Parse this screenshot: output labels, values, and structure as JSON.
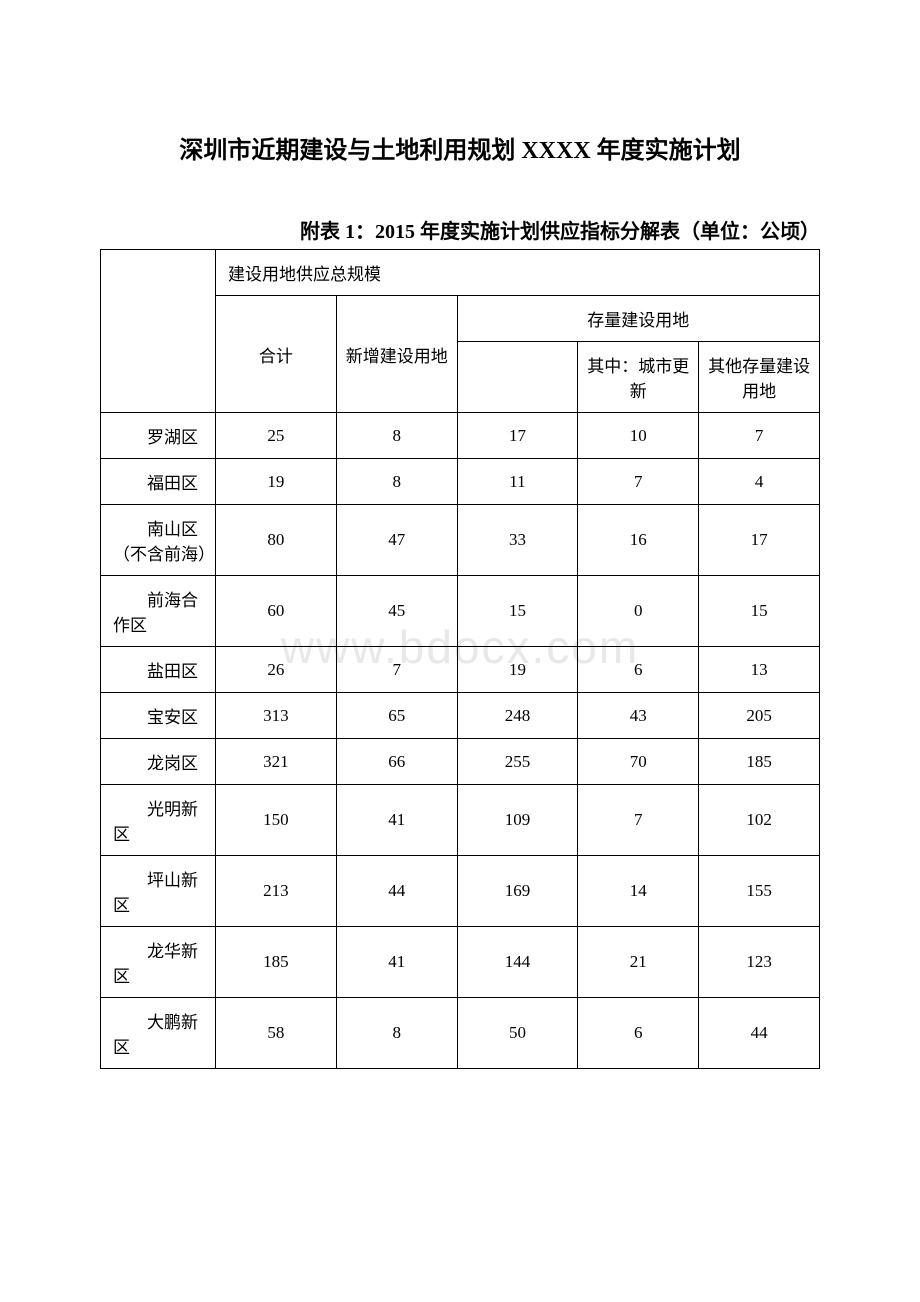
{
  "document": {
    "title": "深圳市近期建设与土地利用规划 XXXX 年度实施计划",
    "subtitle": "附表 1：2015 年度实施计划供应指标分解表（单位：公顷）",
    "watermark": "www.bdocx.com"
  },
  "table": {
    "headers": {
      "main": "建设用地供应总规模",
      "col1": "合计",
      "col2": "新增建设用地",
      "col3_group": "存量建设用地",
      "col3_sub1": "",
      "col3_sub2": "其中：城市更新",
      "col3_sub3": "其他存量建设用地"
    },
    "rows": [
      {
        "region": "罗湖区",
        "total": "25",
        "new": "8",
        "stock": "17",
        "urban_renewal": "10",
        "other_stock": "7"
      },
      {
        "region": "福田区",
        "total": "19",
        "new": "8",
        "stock": "11",
        "urban_renewal": "7",
        "other_stock": "4"
      },
      {
        "region": "南山区（不含前海）",
        "total": "80",
        "new": "47",
        "stock": "33",
        "urban_renewal": "16",
        "other_stock": "17"
      },
      {
        "region": "前海合作区",
        "total": "60",
        "new": "45",
        "stock": "15",
        "urban_renewal": "0",
        "other_stock": "15"
      },
      {
        "region": "盐田区",
        "total": "26",
        "new": "7",
        "stock": "19",
        "urban_renewal": "6",
        "other_stock": "13"
      },
      {
        "region": "宝安区",
        "total": "313",
        "new": "65",
        "stock": "248",
        "urban_renewal": "43",
        "other_stock": "205"
      },
      {
        "region": "龙岗区",
        "total": "321",
        "new": "66",
        "stock": "255",
        "urban_renewal": "70",
        "other_stock": "185"
      },
      {
        "region": "光明新区",
        "total": "150",
        "new": "41",
        "stock": "109",
        "urban_renewal": "7",
        "other_stock": "102"
      },
      {
        "region": "坪山新区",
        "total": "213",
        "new": "44",
        "stock": "169",
        "urban_renewal": "14",
        "other_stock": "155"
      },
      {
        "region": "龙华新区",
        "total": "185",
        "new": "41",
        "stock": "144",
        "urban_renewal": "21",
        "other_stock": "123"
      },
      {
        "region": "大鹏新区",
        "total": "58",
        "new": "8",
        "stock": "50",
        "urban_renewal": "6",
        "other_stock": "44"
      }
    ]
  },
  "styling": {
    "background_color": "#ffffff",
    "text_color": "#000000",
    "border_color": "#000000",
    "watermark_color": "#e8e8e8",
    "title_fontsize": 24,
    "subtitle_fontsize": 20,
    "table_fontsize": 17,
    "watermark_fontsize": 46
  }
}
